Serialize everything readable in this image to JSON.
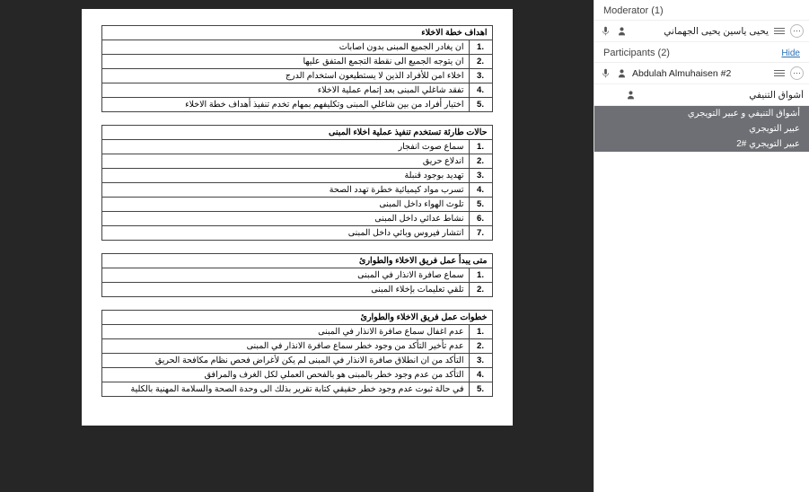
{
  "doc": {
    "tables": [
      {
        "title": "اهداف خطة الاخلاء",
        "rows": [
          "ان يغادر الجميع المبنى بدون اصابات",
          "ان يتوجه الجميع الى نقطة التجمع المتفق عليها",
          "اخلاء امن للأفراد الذين لا يستطيعون استخدام الدرج",
          "تفقد شاغلي المبنى بعد إتمام عملية الاخلاء",
          "اختيار أفراد من بين شاغلي المبنى وتكليفهم بمهام تخدم تنفيذ أهداف خطة الاخلاء"
        ]
      },
      {
        "title": "حالات طارئة تستخدم تنفيذ عملية اخلاء المبنى",
        "rows": [
          "سماع صوت انفجار",
          "اندلاع حريق",
          "تهديد بوجود قنبلة",
          "تسرب مواد كيميائية خطرة تهدد الصحة",
          "تلوث الهواء داخل المبنى",
          "نشاط عدائي داخل المبنى",
          "انتشار فيروس وبائي داخل المبنى"
        ]
      },
      {
        "title": "متى يبدأ عمل فريق الاخلاء والطوارئ",
        "rows": [
          "سماع صافرة الانذار في المبنى",
          "تلقي تعليمات بإخلاء المبنى"
        ]
      },
      {
        "title": "خطوات عمل فريق الاخلاء والطوارئ",
        "rows": [
          "عدم اغفال سماع صافرة الانذار في المبنى",
          "عدم تأخير التأكد من وجود خطر سماع صافرة الانذار في المبنى",
          "التأكد من ان انطلاق صافرة الانذار في المبنى لم يكن لأغراض فحص نظام مكافحة الحريق",
          "التأكد من عدم وجود خطر بالمبنى هو بالفحص العملي لكل الغرف والمرافق",
          "في حالة ثبوت عدم وجود خطر حقيقي كتابة تقرير بذلك الى وحدة الصحة والسلامة المهنية بالكلية"
        ]
      }
    ]
  },
  "panel": {
    "mod_title": "Moderator (1)",
    "part_title": "Participants (2)",
    "hide": "Hide",
    "moderator": "يحيى ياسين يحيى الجهماني",
    "participant": "Abdulah Almuhaisen #2",
    "sub1": "أشواق التنيفي",
    "dark1": "أشواق التنيفي و عبير التويجري",
    "dark2": "عبير التويجري",
    "dark3": "عبير التويجري #2"
  }
}
